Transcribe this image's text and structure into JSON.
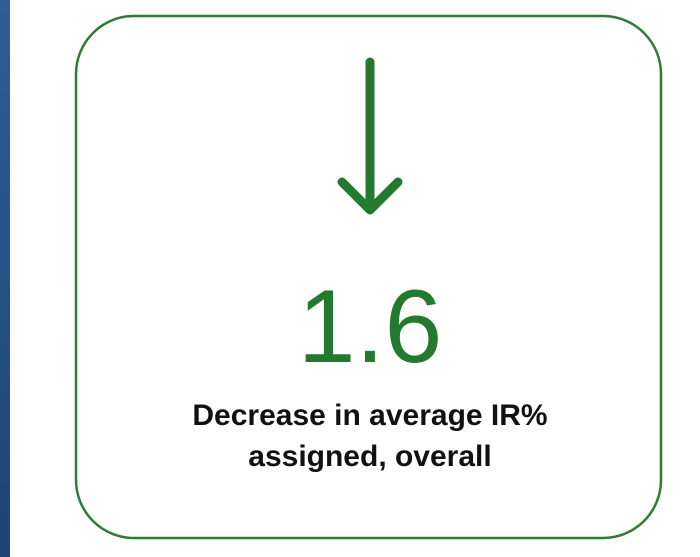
{
  "kpi": {
    "value": "1.6",
    "label_lines": [
      "Decrease in average IR%",
      "assigned, overall"
    ]
  }
}
